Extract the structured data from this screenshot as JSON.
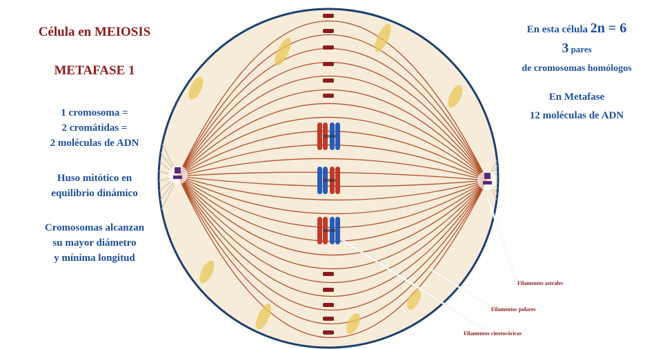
{
  "header": {
    "title": "Célula en MEIOSIS",
    "subtitle": "METAFASE 1"
  },
  "left_notes": [
    [
      "1 cromosoma =",
      "2 cromátidas =",
      "2 moléculas de ADN"
    ],
    [
      "Huso mitótico en",
      "equilibrio dinámico"
    ],
    [
      "Cromosomas alcanzan",
      "su mayor diámetro",
      "y mínima longitud"
    ]
  ],
  "right_notes": {
    "ploidy": {
      "text": "En esta célula",
      "emphasis": "2n = 6"
    },
    "pairs": {
      "emphasis": "3",
      "text": "pares"
    },
    "pairs_line2": "de cromosomas homólogos",
    "metaphase": "En Metafase",
    "dna": "12 moléculas de ADN"
  },
  "labels": {
    "astral": "Filamentos astrales",
    "polar": "Filamentos polares",
    "kinetochore": "Filamentos cinetocóricos"
  }
}
